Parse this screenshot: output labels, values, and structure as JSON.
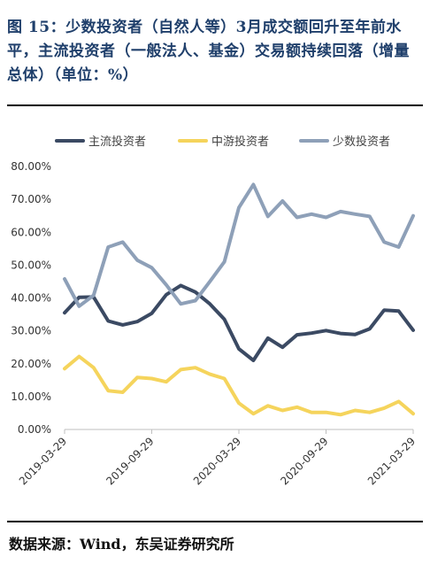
{
  "title": "图 15：少数投资者（自然人等）3月成交额回升至年前水平，主流投资者（一般法人、基金）交易额持续回落（增量总体）（单位：%）",
  "source": "数据来源：Wind，东吴证券研究所",
  "colors": {
    "mainstream": "#3b4a63",
    "midstream": "#f5d45c",
    "minority": "#8ea0b8",
    "title": "#1f3f6b"
  },
  "chart_data": {
    "type": "line",
    "x": [
      "2019-03-29",
      "2019-04-30",
      "2019-05-31",
      "2019-06-28",
      "2019-07-31",
      "2019-08-30",
      "2019-09-30",
      "2019-10-31",
      "2019-11-29",
      "2019-12-31",
      "2020-01-23",
      "2020-02-28",
      "2020-03-31",
      "2020-04-30",
      "2020-05-29",
      "2020-06-30",
      "2020-07-31",
      "2020-08-31",
      "2020-09-30",
      "2020-10-30",
      "2020-11-30",
      "2020-12-31",
      "2021-01-29",
      "2021-02-26",
      "2021-03-29"
    ],
    "xticks": [
      "2019-03-29",
      "2019-09-29",
      "2020-03-29",
      "2020-09-29",
      "2021-03-29"
    ],
    "yticks": [
      "0.00%",
      "10.00%",
      "20.00%",
      "30.00%",
      "40.00%",
      "50.00%",
      "60.00%",
      "70.00%",
      "80.00%"
    ],
    "ylim": [
      0,
      80
    ],
    "series": [
      {
        "name": "主流投资者",
        "color": "#3b4a63",
        "values": [
          35.5,
          40.2,
          40.3,
          33.0,
          31.8,
          32.8,
          35.3,
          41.0,
          43.8,
          41.8,
          38.2,
          33.5,
          24.5,
          21.0,
          27.8,
          25.0,
          28.8,
          29.3,
          30.1,
          29.2,
          28.9,
          30.6,
          36.3,
          36.0,
          30.2
        ]
      },
      {
        "name": "中游投资者",
        "color": "#f5d45c",
        "values": [
          18.5,
          22.2,
          18.8,
          11.8,
          11.3,
          15.8,
          15.5,
          14.5,
          18.2,
          18.8,
          16.8,
          15.5,
          8.0,
          4.8,
          7.2,
          5.8,
          6.8,
          5.2,
          5.2,
          4.5,
          5.8,
          5.2,
          6.5,
          8.5,
          4.8
        ]
      },
      {
        "name": "少数投资者",
        "color": "#8ea0b8",
        "values": [
          45.8,
          37.5,
          40.8,
          55.5,
          57.0,
          51.5,
          49.2,
          44.0,
          38.2,
          39.2,
          45.0,
          51.0,
          67.5,
          74.5,
          64.8,
          69.5,
          64.5,
          65.5,
          64.5,
          66.3,
          65.5,
          64.8,
          57.0,
          55.5,
          65.0
        ]
      }
    ]
  }
}
